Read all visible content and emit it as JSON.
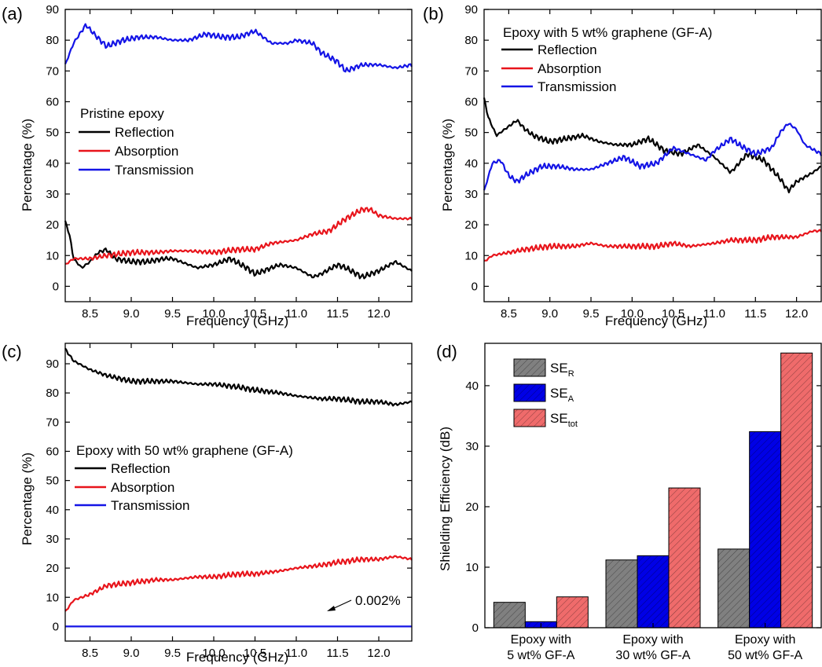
{
  "chart_data": [
    {
      "type": "line",
      "panel_label": "(a)",
      "xlabel": "Frequency (GHz)",
      "ylabel": "Percentage (%)",
      "xlim": [
        8.2,
        12.4
      ],
      "ylim": [
        -5,
        90
      ],
      "xticks": [
        8.5,
        9.0,
        9.5,
        10.0,
        10.5,
        11.0,
        11.5,
        12.0
      ],
      "xtick_labels": [
        "8.5",
        "9.0",
        "9.5",
        "10.0",
        "10.5",
        "11.0",
        "11.5",
        "12.0"
      ],
      "yticks": [
        0,
        10,
        20,
        30,
        40,
        50,
        60,
        70,
        80,
        90
      ],
      "ytick_labels": [
        "0",
        "10",
        "20",
        "30",
        "40",
        "50",
        "60",
        "70",
        "80",
        "90"
      ],
      "legend_title": "Pristine epoxy",
      "legend_position": "center-left",
      "series": [
        {
          "name": "Reflection",
          "color": "#000000",
          "x": [
            8.2,
            8.25,
            8.3,
            8.4,
            8.5,
            8.6,
            8.7,
            8.8,
            9.0,
            9.2,
            9.4,
            9.5,
            9.7,
            9.8,
            10.0,
            10.2,
            10.4,
            10.5,
            10.6,
            10.8,
            11.0,
            11.2,
            11.3,
            11.5,
            11.6,
            11.8,
            12.0,
            12.2,
            12.4
          ],
          "y": [
            21,
            17,
            9,
            6,
            8,
            11,
            12,
            9,
            8,
            8,
            9,
            9,
            7,
            6,
            7,
            9,
            6,
            4,
            5,
            7,
            6,
            3,
            4,
            7,
            6,
            3,
            5,
            8,
            5
          ]
        },
        {
          "name": "Absorption",
          "color": "#e8141b",
          "x": [
            8.2,
            8.3,
            8.5,
            8.7,
            9.0,
            9.3,
            9.5,
            9.7,
            10.0,
            10.3,
            10.5,
            10.7,
            11.0,
            11.2,
            11.4,
            11.6,
            11.8,
            11.9,
            12.0,
            12.2,
            12.4
          ],
          "y": [
            7,
            9,
            9,
            10,
            11,
            11,
            11.5,
            11.5,
            11,
            12,
            12,
            14,
            15,
            17,
            18,
            22,
            25,
            25,
            23,
            22,
            22
          ]
        },
        {
          "name": "Transmission",
          "color": "#1414e6",
          "x": [
            8.2,
            8.3,
            8.45,
            8.55,
            8.7,
            8.9,
            9.1,
            9.3,
            9.5,
            9.7,
            9.9,
            10.1,
            10.3,
            10.5,
            10.7,
            10.9,
            11.0,
            11.2,
            11.3,
            11.5,
            11.6,
            11.8,
            12.0,
            12.2,
            12.4
          ],
          "y": [
            72,
            79,
            85,
            82,
            78,
            80,
            81,
            81,
            80,
            80,
            82,
            81,
            81,
            83,
            79,
            79,
            80,
            79,
            76,
            73,
            70,
            72,
            72,
            71,
            72
          ]
        }
      ]
    },
    {
      "type": "line",
      "panel_label": "(b)",
      "xlabel": "Frequency (GHz)",
      "ylabel": "Percentage (%)",
      "xlim": [
        8.2,
        12.3
      ],
      "ylim": [
        -5,
        90
      ],
      "xticks": [
        8.5,
        9.0,
        9.5,
        10.0,
        10.5,
        11.0,
        11.5,
        12.0
      ],
      "xtick_labels": [
        "8.5",
        "9.0",
        "9.5",
        "10.0",
        "10.5",
        "11.0",
        "11.5",
        "12.0"
      ],
      "yticks": [
        0,
        10,
        20,
        30,
        40,
        50,
        60,
        70,
        80,
        90
      ],
      "ytick_labels": [
        "0",
        "10",
        "20",
        "30",
        "40",
        "50",
        "60",
        "70",
        "80",
        "90"
      ],
      "legend_title": "Epoxy with 5 wt% graphene (GF-A)",
      "legend_position": "top-left",
      "series": [
        {
          "name": "Reflection",
          "color": "#000000",
          "x": [
            8.2,
            8.25,
            8.35,
            8.5,
            8.6,
            8.7,
            8.8,
            9.0,
            9.2,
            9.4,
            9.6,
            9.8,
            10.0,
            10.2,
            10.4,
            10.6,
            10.8,
            11.0,
            11.2,
            11.4,
            11.6,
            11.8,
            11.9,
            12.0,
            12.2,
            12.3
          ],
          "y": [
            61,
            55,
            49,
            52,
            54,
            51,
            49,
            47,
            48,
            49,
            47,
            46,
            46,
            48,
            44,
            43,
            46,
            42,
            37,
            43,
            41,
            35,
            31,
            34,
            37,
            39
          ]
        },
        {
          "name": "Absorption",
          "color": "#e8141b",
          "x": [
            8.2,
            8.3,
            8.5,
            8.7,
            9.0,
            9.3,
            9.5,
            9.7,
            10.0,
            10.3,
            10.5,
            10.7,
            11.0,
            11.2,
            11.5,
            11.7,
            12.0,
            12.2,
            12.3
          ],
          "y": [
            8,
            10,
            11,
            12,
            13,
            13,
            14,
            13,
            13,
            13,
            14,
            13,
            14,
            15,
            15,
            16,
            16,
            18,
            18
          ]
        },
        {
          "name": "Transmission",
          "color": "#1414e6",
          "x": [
            8.2,
            8.3,
            8.4,
            8.5,
            8.6,
            8.7,
            8.9,
            9.1,
            9.3,
            9.5,
            9.7,
            9.9,
            10.1,
            10.3,
            10.5,
            10.7,
            10.9,
            11.0,
            11.2,
            11.3,
            11.5,
            11.7,
            11.8,
            11.9,
            12.0,
            12.1,
            12.3
          ],
          "y": [
            31,
            40,
            41,
            36,
            34,
            36,
            39,
            39,
            38,
            38,
            40,
            42,
            39,
            40,
            45,
            43,
            41,
            44,
            48,
            46,
            43,
            45,
            50,
            53,
            51,
            46,
            43
          ]
        }
      ]
    },
    {
      "type": "line",
      "panel_label": "(c)",
      "xlabel": "Frequency (GHz)",
      "ylabel": "Percentage (%)",
      "xlim": [
        8.2,
        12.4
      ],
      "ylim": [
        -5,
        97
      ],
      "xticks": [
        8.5,
        9.0,
        9.5,
        10.0,
        10.5,
        11.0,
        11.5,
        12.0
      ],
      "xtick_labels": [
        "8.5",
        "9.0",
        "9.5",
        "10.0",
        "10.5",
        "11.0",
        "11.5",
        "12.0"
      ],
      "yticks": [
        0,
        10,
        20,
        30,
        40,
        50,
        60,
        70,
        80,
        90
      ],
      "ytick_labels": [
        "0",
        "10",
        "20",
        "30",
        "40",
        "50",
        "60",
        "70",
        "80",
        "90"
      ],
      "legend_title": "Epoxy with 50 wt% graphene (GF-A)",
      "legend_position": "center-left",
      "annotation": "0.002%",
      "annotation_target": {
        "x": 11.4,
        "y": 0
      },
      "series": [
        {
          "name": "Reflection",
          "color": "#000000",
          "x": [
            8.2,
            8.3,
            8.5,
            8.7,
            9.0,
            9.3,
            9.5,
            9.8,
            10.0,
            10.3,
            10.5,
            10.8,
            11.0,
            11.3,
            11.5,
            11.8,
            12.0,
            12.2,
            12.4
          ],
          "y": [
            95,
            91,
            88,
            86,
            84,
            84,
            84,
            83,
            83,
            82,
            81,
            80,
            79,
            78,
            78,
            77,
            77,
            76,
            77
          ]
        },
        {
          "name": "Absorption",
          "color": "#e8141b",
          "x": [
            8.2,
            8.3,
            8.5,
            8.7,
            9.0,
            9.3,
            9.5,
            9.8,
            10.0,
            10.3,
            10.5,
            10.8,
            11.0,
            11.3,
            11.5,
            11.8,
            12.0,
            12.2,
            12.4
          ],
          "y": [
            5,
            9,
            11,
            14,
            15,
            16,
            16,
            17,
            17,
            18,
            18,
            19,
            20,
            21,
            22,
            23,
            23,
            24,
            23
          ]
        },
        {
          "name": "Transmission",
          "color": "#1414e6",
          "x": [
            8.2,
            12.4
          ],
          "y": [
            0.002,
            0.002
          ]
        }
      ]
    },
    {
      "type": "bar",
      "panel_label": "(d)",
      "ylabel": "Shielding Efficiency (dB)",
      "ylim": [
        0,
        47
      ],
      "yticks": [
        0,
        10,
        20,
        30,
        40
      ],
      "ytick_labels": [
        "0",
        "10",
        "20",
        "30",
        "40"
      ],
      "categories": [
        [
          "Epoxy with",
          "5 wt% GF-A"
        ],
        [
          "Epoxy with",
          "30 wt% GF-A"
        ],
        [
          "Epoxy with",
          "50 wt% GF-A"
        ]
      ],
      "legend_position": "top-left",
      "series": [
        {
          "name": "SE",
          "sub": "R",
          "color": "#808080",
          "values": [
            4.2,
            11.2,
            13.0
          ]
        },
        {
          "name": "SE",
          "sub": "A",
          "color": "#0000e6",
          "values": [
            1.0,
            11.9,
            32.4
          ]
        },
        {
          "name": "SE",
          "sub": "tot",
          "color": "#ef6b6b",
          "values": [
            5.1,
            23.1,
            45.4
          ]
        }
      ]
    }
  ]
}
